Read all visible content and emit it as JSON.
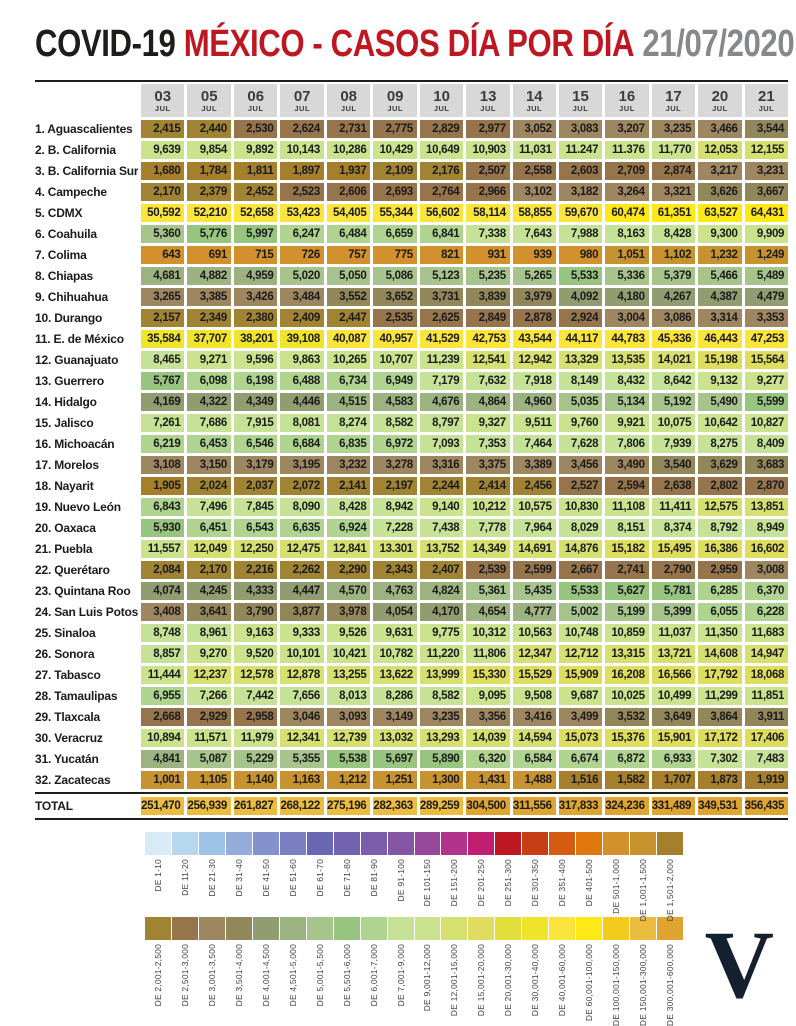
{
  "header": {
    "app_black": "COVID-19",
    "app_red": "MÉXICO - CASOS DÍA POR DÍA",
    "date": "21/07/2020"
  },
  "logo": "V",
  "colors": {
    "title_black": "#1d1d1b",
    "title_red": "#be1722",
    "title_gray": "#87888a",
    "header_cell_bg": "#d8d8d8",
    "rule": "#1d1d1b",
    "logo_navy": "#15202e"
  },
  "chart_data": {
    "type": "heatmap",
    "title": "COVID-19 MÉXICO - CASOS DÍA POR DÍA 21/07/2020",
    "columns": [
      {
        "day": "03",
        "month": "JUL"
      },
      {
        "day": "05",
        "month": "JUL"
      },
      {
        "day": "06",
        "month": "JUL"
      },
      {
        "day": "07",
        "month": "JUL"
      },
      {
        "day": "08",
        "month": "JUL"
      },
      {
        "day": "09",
        "month": "JUL"
      },
      {
        "day": "10",
        "month": "JUL"
      },
      {
        "day": "13",
        "month": "JUL"
      },
      {
        "day": "14",
        "month": "JUL"
      },
      {
        "day": "15",
        "month": "JUL"
      },
      {
        "day": "16",
        "month": "JUL"
      },
      {
        "day": "17",
        "month": "JUL"
      },
      {
        "day": "20",
        "month": "JUL"
      },
      {
        "day": "21",
        "month": "JUL"
      }
    ],
    "rows": [
      {
        "label": "1. Aguascalientes",
        "values": [
          "2,415",
          "2,440",
          "2,530",
          "2,624",
          "2,731",
          "2,775",
          "2,829",
          "2,977",
          "3,052",
          "3,083",
          "3,207",
          "3,235",
          "3,466",
          "3,544"
        ]
      },
      {
        "label": "2. B. California",
        "values": [
          "9,639",
          "9,854",
          "9,892",
          "10,143",
          "10,286",
          "10,429",
          "10,649",
          "10,903",
          "11,031",
          "11.247",
          "11.376",
          "11,770",
          "12,053",
          "12,155"
        ]
      },
      {
        "label": "3. B. California Sur",
        "values": [
          "1,680",
          "1,784",
          "1,811",
          "1,897",
          "1,937",
          "2,109",
          "2,176",
          "2,507",
          "2,558",
          "2,603",
          "2,709",
          "2,874",
          "3,217",
          "3,231"
        ]
      },
      {
        "label": "4. Campeche",
        "values": [
          "2,170",
          "2,379",
          "2,452",
          "2,523",
          "2,606",
          "2,693",
          "2,764",
          "2,966",
          "3,102",
          "3,182",
          "3,264",
          "3,321",
          "3,626",
          "3,667"
        ]
      },
      {
        "label": "5. CDMX",
        "values": [
          "50,592",
          "52,210",
          "52,658",
          "53,423",
          "54,405",
          "55,344",
          "56,602",
          "58,114",
          "58,855",
          "59,670",
          "60,474",
          "61,351",
          "63,527",
          "64,431"
        ]
      },
      {
        "label": "6. Coahuila",
        "values": [
          "5,360",
          "5,776",
          "5,997",
          "6,247",
          "6,484",
          "6,659",
          "6,841",
          "7,338",
          "7,643",
          "7,988",
          "8,163",
          "8,428",
          "9,300",
          "9,909"
        ]
      },
      {
        "label": "7. Colima",
        "values": [
          "643",
          "691",
          "715",
          "726",
          "757",
          "775",
          "821",
          "931",
          "939",
          "980",
          "1,051",
          "1,102",
          "1,232",
          "1,249"
        ]
      },
      {
        "label": "8. Chiapas",
        "values": [
          "4,681",
          "4,882",
          "4,959",
          "5,020",
          "5,050",
          "5,086",
          "5,123",
          "5,235",
          "5,265",
          "5,533",
          "5,336",
          "5,379",
          "5,466",
          "5,489"
        ]
      },
      {
        "label": "9. Chihuahua",
        "values": [
          "3,265",
          "3,385",
          "3,426",
          "3,484",
          "3,552",
          "3,652",
          "3,731",
          "3,839",
          "3,979",
          "4,092",
          "4,180",
          "4,267",
          "4,387",
          "4,479"
        ]
      },
      {
        "label": "10. Durango",
        "values": [
          "2,157",
          "2,349",
          "2,380",
          "2,409",
          "2,447",
          "2,535",
          "2,625",
          "2,849",
          "2,878",
          "2,924",
          "3,004",
          "3,086",
          "3,314",
          "3,353"
        ]
      },
      {
        "label": "11. E. de México",
        "values": [
          "35,584",
          "37,707",
          "38,201",
          "39,108",
          "40,087",
          "40,957",
          "41,529",
          "42,753",
          "43,544",
          "44,117",
          "44,783",
          "45,336",
          "46,443",
          "47,253"
        ]
      },
      {
        "label": "12. Guanajuato",
        "values": [
          "8,465",
          "9,271",
          "9,596",
          "9,863",
          "10,265",
          "10,707",
          "11,239",
          "12,541",
          "12,942",
          "13,329",
          "13,535",
          "14,021",
          "15,198",
          "15,564"
        ]
      },
      {
        "label": "13. Guerrero",
        "values": [
          "5,767",
          "6,098",
          "6,198",
          "6,488",
          "6,734",
          "6,949",
          "7,179",
          "7,632",
          "7,918",
          "8,149",
          "8,432",
          "8,642",
          "9,132",
          "9,277"
        ]
      },
      {
        "label": "14. Hidalgo",
        "values": [
          "4,169",
          "4,322",
          "4,349",
          "4,446",
          "4,515",
          "4,583",
          "4,676",
          "4,864",
          "4,960",
          "5,035",
          "5,134",
          "5,192",
          "5,490",
          "5,599"
        ]
      },
      {
        "label": "15. Jalisco",
        "values": [
          "7,261",
          "7,686",
          "7,915",
          "8,081",
          "8,274",
          "8,582",
          "8,797",
          "9,327",
          "9,511",
          "9,760",
          "9,921",
          "10,075",
          "10,642",
          "10,827"
        ]
      },
      {
        "label": "16. Michoacán",
        "values": [
          "6,219",
          "6,453",
          "6,546",
          "6,684",
          "6,835",
          "6,972",
          "7,093",
          "7,353",
          "7,464",
          "7,628",
          "7,806",
          "7,939",
          "8,275",
          "8,409"
        ]
      },
      {
        "label": "17. Morelos",
        "values": [
          "3,108",
          "3,150",
          "3,179",
          "3,195",
          "3,232",
          "3,278",
          "3,316",
          "3,375",
          "3,389",
          "3,456",
          "3,490",
          "3,540",
          "3,629",
          "3,683"
        ]
      },
      {
        "label": "18. Nayarit",
        "values": [
          "1,905",
          "2,024",
          "2,037",
          "2,072",
          "2,141",
          "2,197",
          "2,244",
          "2,414",
          "2,456",
          "2,527",
          "2,594",
          "2,638",
          "2,802",
          "2,870"
        ]
      },
      {
        "label": "19. Nuevo León",
        "values": [
          "6,843",
          "7,496",
          "7,845",
          "8,090",
          "8,428",
          "8,942",
          "9,140",
          "10,212",
          "10,575",
          "10,830",
          "11,108",
          "11,411",
          "12,575",
          "13,851"
        ]
      },
      {
        "label": "20. Oaxaca",
        "values": [
          "5,930",
          "6,451",
          "6,543",
          "6,635",
          "6,924",
          "7,228",
          "7,438",
          "7,778",
          "7,964",
          "8,029",
          "8,151",
          "8,374",
          "8,792",
          "8,949"
        ]
      },
      {
        "label": "21. Puebla",
        "values": [
          "11,557",
          "12,049",
          "12,250",
          "12,475",
          "12,841",
          "13.301",
          "13,752",
          "14,349",
          "14,691",
          "14,876",
          "15,182",
          "15,495",
          "16,386",
          "16,602"
        ]
      },
      {
        "label": "22. Querétaro",
        "values": [
          "2,084",
          "2,170",
          "2,216",
          "2,262",
          "2,290",
          "2,343",
          "2,407",
          "2,539",
          "2,599",
          "2,667",
          "2,741",
          "2,790",
          "2,959",
          "3,008"
        ]
      },
      {
        "label": "23. Quintana Roo",
        "values": [
          "4,074",
          "4,245",
          "4,333",
          "4,447",
          "4,570",
          "4,763",
          "4,824",
          "5,361",
          "5,435",
          "5,533",
          "5,627",
          "5,781",
          "6,285",
          "6,370"
        ]
      },
      {
        "label": "24. San Luis Potosí",
        "values": [
          "3,408",
          "3,641",
          "3,790",
          "3,877",
          "3,978",
          "4,054",
          "4,170",
          "4,654",
          "4,777",
          "5,002",
          "5,199",
          "5,399",
          "6,055",
          "6,228"
        ]
      },
      {
        "label": "25. Sinaloa",
        "values": [
          "8,748",
          "8,961",
          "9,163",
          "9,333",
          "9,526",
          "9,631",
          "9,775",
          "10,312",
          "10,563",
          "10,748",
          "10,859",
          "11,037",
          "11,350",
          "11,683"
        ]
      },
      {
        "label": "26. Sonora",
        "values": [
          "8,857",
          "9,270",
          "9,520",
          "10,101",
          "10,421",
          "10,782",
          "11,220",
          "11,806",
          "12,347",
          "12,712",
          "13,315",
          "13,721",
          "14,608",
          "14,947"
        ]
      },
      {
        "label": "27. Tabasco",
        "values": [
          "11,444",
          "12,237",
          "12,578",
          "12,878",
          "13,255",
          "13,622",
          "13,999",
          "15,330",
          "15,529",
          "15,909",
          "16,208",
          "16,566",
          "17,792",
          "18,068"
        ]
      },
      {
        "label": "28. Tamaulipas",
        "values": [
          "6,955",
          "7,266",
          "7,442",
          "7,656",
          "8,013",
          "8,286",
          "8,582",
          "9,095",
          "9,508",
          "9,687",
          "10,025",
          "10,499",
          "11,299",
          "11,851"
        ]
      },
      {
        "label": "29. Tlaxcala",
        "values": [
          "2,668",
          "2,929",
          "2,958",
          "3,046",
          "3,093",
          "3,149",
          "3,235",
          "3,356",
          "3,416",
          "3,499",
          "3,532",
          "3,649",
          "3,864",
          "3,911"
        ]
      },
      {
        "label": "30. Veracruz",
        "values": [
          "10,894",
          "11,571",
          "11,979",
          "12,341",
          "12,739",
          "13,032",
          "13,293",
          "14,039",
          "14,594",
          "15,073",
          "15,376",
          "15,901",
          "17,172",
          "17,406"
        ]
      },
      {
        "label": "31. Yucatán",
        "values": [
          "4,841",
          "5,087",
          "5,229",
          "5,355",
          "5,538",
          "5,697",
          "5,890",
          "6,320",
          "6,584",
          "6,674",
          "6,872",
          "6,933",
          "7,302",
          "7,483"
        ]
      },
      {
        "label": "32. Zacatecas",
        "values": [
          "1,001",
          "1,105",
          "1,140",
          "1,163",
          "1,212",
          "1,251",
          "1,300",
          "1,431",
          "1,488",
          "1,516",
          "1,582",
          "1,707",
          "1,873",
          "1,919"
        ]
      }
    ],
    "total": {
      "label": "TOTAL",
      "values": [
        "251,470",
        "256,939",
        "261,827",
        "268,122",
        "275,196",
        "282,363",
        "289,259",
        "304,500",
        "311,556",
        "317,833",
        "324,236",
        "331,489",
        "349,531",
        "356,435"
      ]
    },
    "legend_row1": [
      {
        "label": "DE 1-10",
        "max": 10,
        "color": "#d8ebf7"
      },
      {
        "label": "DE 11-20",
        "max": 20,
        "color": "#b7d7ee"
      },
      {
        "label": "DE 21-30",
        "max": 30,
        "color": "#9dc4e6"
      },
      {
        "label": "DE 31-40",
        "max": 40,
        "color": "#95abd9"
      },
      {
        "label": "DE 41-50",
        "max": 50,
        "color": "#8492cc"
      },
      {
        "label": "DE 51-60",
        "max": 60,
        "color": "#7b80c1"
      },
      {
        "label": "DE 61-70",
        "max": 70,
        "color": "#6967b4"
      },
      {
        "label": "DE 71-80",
        "max": 80,
        "color": "#7263b0"
      },
      {
        "label": "DE 81-90",
        "max": 90,
        "color": "#7c5dab"
      },
      {
        "label": "DE 91-100",
        "max": 100,
        "color": "#8456a4"
      },
      {
        "label": "DE 101-150",
        "max": 150,
        "color": "#98489b"
      },
      {
        "label": "DE 151-200",
        "max": 200,
        "color": "#b1348a"
      },
      {
        "label": "DE 201-250",
        "max": 250,
        "color": "#c21e71"
      },
      {
        "label": "DE 251-300",
        "max": 300,
        "color": "#bc1723"
      },
      {
        "label": "DE 301-350",
        "max": 350,
        "color": "#c73e15"
      },
      {
        "label": "DE 351-400",
        "max": 400,
        "color": "#d65c11"
      },
      {
        "label": "DE 401-500",
        "max": 500,
        "color": "#e1780e"
      },
      {
        "label": "DE 501-1,000",
        "max": 1000,
        "color": "#d2912c"
      },
      {
        "label": "DE 1,001-1,500",
        "max": 1500,
        "color": "#c79230"
      },
      {
        "label": "DE 1,501-2,000",
        "max": 2000,
        "color": "#a67f2c"
      }
    ],
    "legend_row2": [
      {
        "label": "DE 2,001-2,500",
        "max": 2500,
        "color": "#a08434"
      },
      {
        "label": "DE 2,501-3,000",
        "max": 3000,
        "color": "#96744c"
      },
      {
        "label": "DE 3,001-3,500",
        "max": 3500,
        "color": "#9d8660"
      },
      {
        "label": "DE 3,501-4,000",
        "max": 4000,
        "color": "#91875b"
      },
      {
        "label": "DE 4,001-4,500",
        "max": 4500,
        "color": "#929c71"
      },
      {
        "label": "DE 4,501-5,000",
        "max": 5000,
        "color": "#9cb381"
      },
      {
        "label": "DE 5,001-5,500",
        "max": 5500,
        "color": "#a7c48c"
      },
      {
        "label": "DE 5,501-6,000",
        "max": 6000,
        "color": "#97c47e"
      },
      {
        "label": "DE 6,001-7,000",
        "max": 7000,
        "color": "#aed48f"
      },
      {
        "label": "DE 7,001-9,000",
        "max": 9000,
        "color": "#c6e297"
      },
      {
        "label": "DE 9,001-12,000",
        "max": 12000,
        "color": "#cbe38d"
      },
      {
        "label": "DE 12,001-15,000",
        "max": 15000,
        "color": "#d5e070"
      },
      {
        "label": "DE 15,001-20,000",
        "max": 20000,
        "color": "#dedd5e"
      },
      {
        "label": "DE 20,001-30,000",
        "max": 30000,
        "color": "#e2df3c"
      },
      {
        "label": "DE 30,001-40,000",
        "max": 40000,
        "color": "#f0e52b"
      },
      {
        "label": "DE 40,001-60,000",
        "max": 60000,
        "color": "#fbe53c"
      },
      {
        "label": "DE 60,001-100,000",
        "max": 100000,
        "color": "#ffe818"
      },
      {
        "label": "DE 100,001-150,000",
        "max": 150000,
        "color": "#f2cb1d"
      },
      {
        "label": "DE 150,001-300,000",
        "max": 300000,
        "color": "#ecbc41"
      },
      {
        "label": "DE 300,001-600,000",
        "max": 600000,
        "color": "#e0a530"
      }
    ]
  }
}
